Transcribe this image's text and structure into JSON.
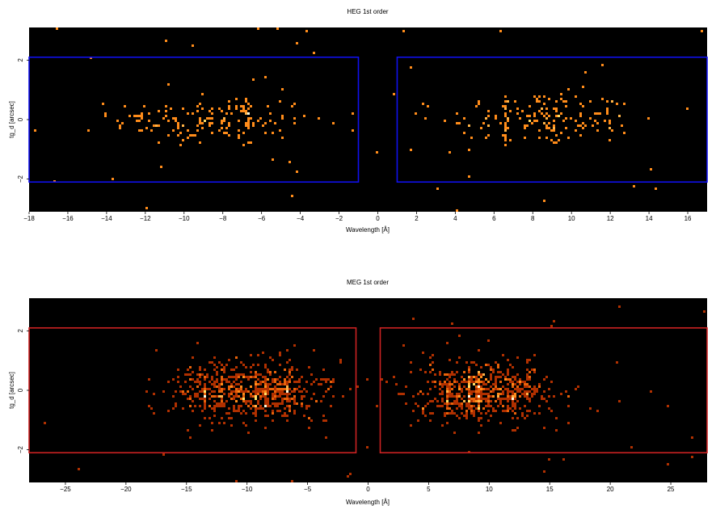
{
  "chart_data": [
    {
      "type": "heatmap",
      "title": "HEG 1st order",
      "xlabel": "Wavelength [Å]",
      "ylabel": "tg_d [arcsec]",
      "xlim": [
        -18,
        17
      ],
      "ylim": [
        -3.1,
        3.1
      ],
      "xticks": [
        -18,
        -16,
        -14,
        -12,
        -10,
        -8,
        -6,
        -4,
        -2,
        0,
        2,
        4,
        6,
        8,
        10,
        12,
        14,
        16
      ],
      "xtick_labels": [
        "−18",
        "−16",
        "−14",
        "−12",
        "−10",
        "−8",
        "−6",
        "−4",
        "−2",
        "0",
        "2",
        "4",
        "6",
        "8",
        "10",
        "12",
        "14",
        "16"
      ],
      "yticks": [
        -2,
        0,
        2
      ],
      "ytick_labels": [
        "−2",
        "0",
        "2"
      ],
      "background": "#000000",
      "colormap": [
        "#e8620a",
        "#ff8c1a",
        "#ffb347",
        "#ffe066",
        "#fffbe0"
      ],
      "boxes_color": "#1010ee",
      "extraction_regions": [
        {
          "x": [
            -18,
            -1
          ],
          "y": [
            -2.1,
            2.1
          ]
        },
        {
          "x": [
            1,
            17
          ],
          "y": [
            -2.1,
            2.1
          ]
        }
      ],
      "emission_lines": [
        {
          "x": -9.2,
          "weight": 1.0
        },
        {
          "x": -6.7,
          "weight": 0.7
        },
        {
          "x": -7.8,
          "weight": 0.5
        },
        {
          "x": 6.7,
          "weight": 0.9
        },
        {
          "x": 9.2,
          "weight": 0.9
        },
        {
          "x": 12.1,
          "weight": 0.6
        }
      ],
      "source_profile": {
        "negative_order": {
          "x_center": -8.5,
          "x_sigma": 2.6,
          "y_sigma": 0.45
        },
        "positive_order": {
          "x_center": 8.5,
          "x_sigma": 2.4,
          "y_sigma": 0.45
        }
      },
      "event_density": "sparse"
    },
    {
      "type": "heatmap",
      "title": "MEG 1st order",
      "xlabel": "Wavelength [Å]",
      "ylabel": "tg_d [arcsec]",
      "xlim": [
        -28,
        28
      ],
      "ylim": [
        -3.1,
        3.1
      ],
      "xticks": [
        -25,
        -20,
        -15,
        -10,
        -5,
        0,
        5,
        10,
        15,
        20,
        25
      ],
      "xtick_labels": [
        "−25",
        "−20",
        "−15",
        "−10",
        "−5",
        "0",
        "5",
        "10",
        "15",
        "20",
        "25"
      ],
      "yticks": [
        -2,
        0,
        2
      ],
      "ytick_labels": [
        "−2",
        "0",
        "2"
      ],
      "background": "#000000",
      "colormap": [
        "#b03000",
        "#e8620a",
        "#ff8c1a",
        "#ffb347",
        "#ffe066",
        "#fffbe0"
      ],
      "boxes_color": "#cc2222",
      "extraction_regions": [
        {
          "x": [
            -28,
            -1
          ],
          "y": [
            -2.1,
            2.1
          ]
        },
        {
          "x": [
            1,
            28
          ],
          "y": [
            -2.1,
            2.1
          ]
        }
      ],
      "emission_lines": [
        {
          "x": -9.2,
          "weight": 1.0
        },
        {
          "x": -6.7,
          "weight": 1.0
        },
        {
          "x": -8.4,
          "weight": 0.6
        },
        {
          "x": -12.1,
          "weight": 0.7
        },
        {
          "x": -13.4,
          "weight": 0.4
        },
        {
          "x": 6.7,
          "weight": 1.0
        },
        {
          "x": 9.2,
          "weight": 0.9
        },
        {
          "x": 8.4,
          "weight": 0.5
        },
        {
          "x": 12.1,
          "weight": 0.7
        },
        {
          "x": 13.4,
          "weight": 0.4
        }
      ],
      "source_profile": {
        "negative_order": {
          "x_center": -9.5,
          "x_sigma": 3.2,
          "y_sigma": 0.5
        },
        "positive_order": {
          "x_center": 9.5,
          "x_sigma": 3.0,
          "y_sigma": 0.5
        }
      },
      "event_density": "dense"
    }
  ]
}
